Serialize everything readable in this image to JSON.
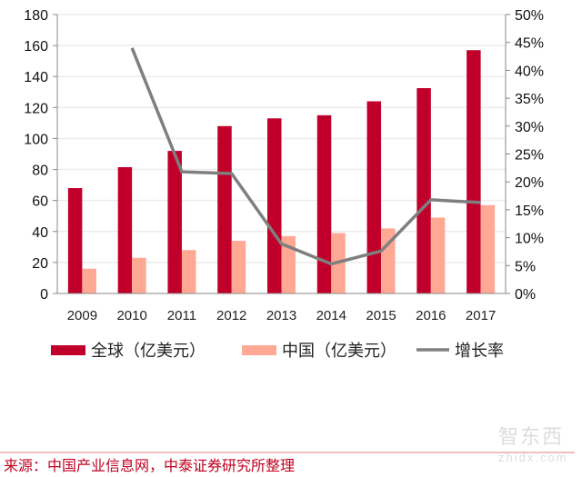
{
  "chart_data": {
    "type": "bar",
    "categories": [
      "2009",
      "2010",
      "2011",
      "2012",
      "2013",
      "2014",
      "2015",
      "2016",
      "2017"
    ],
    "series": [
      {
        "name": "全球（亿美元）",
        "type": "bar",
        "axis": "left",
        "color": "#c0002a",
        "values": [
          68,
          81.5,
          92,
          108,
          113,
          115,
          124,
          132.5,
          157
        ]
      },
      {
        "name": "中国（亿美元）",
        "type": "bar",
        "axis": "left",
        "color": "#ffa994",
        "values": [
          16,
          23,
          28,
          34,
          37,
          39,
          42,
          49,
          57
        ]
      },
      {
        "name": "增长率",
        "type": "line",
        "axis": "right",
        "color": "#7f7f7f",
        "values": [
          null,
          0.44,
          0.218,
          0.215,
          0.089,
          0.053,
          0.076,
          0.168,
          0.163
        ]
      }
    ],
    "yleft": {
      "min": 0,
      "max": 180,
      "step": 20,
      "ticks": [
        "0",
        "20",
        "40",
        "60",
        "80",
        "100",
        "120",
        "140",
        "160",
        "180"
      ]
    },
    "yright": {
      "min": 0,
      "max": 0.5,
      "step": 0.05,
      "ticks": [
        "0%",
        "5%",
        "10%",
        "15%",
        "20%",
        "25%",
        "30%",
        "35%",
        "40%",
        "45%",
        "50%"
      ]
    },
    "grid": true,
    "legend": "bottom"
  },
  "source": "来源：中国产业信息网，中泰证券研究所整理",
  "watermark": {
    "logo": "智东西",
    "url": "zhidx.com"
  }
}
